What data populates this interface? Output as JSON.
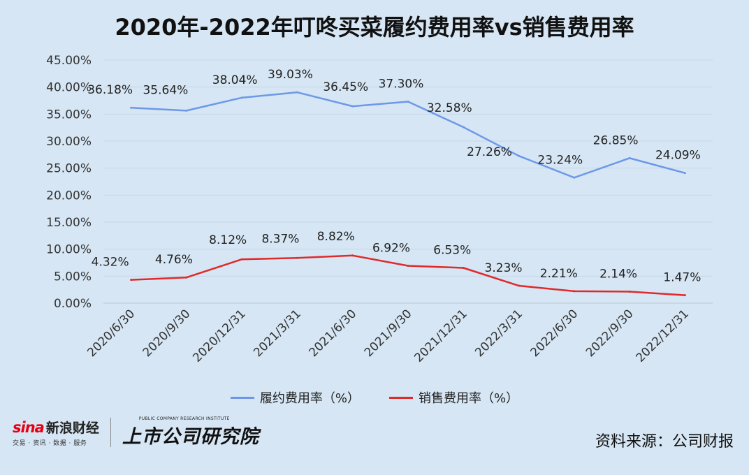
{
  "title": "2020年-2022年叮咚买菜履约费用率vs销售费用率",
  "chart_data": {
    "type": "line",
    "categories": [
      "2020/6/30",
      "2020/9/30",
      "2020/12/31",
      "2021/3/31",
      "2021/6/30",
      "2021/9/30",
      "2021/12/31",
      "2022/3/31",
      "2022/6/30",
      "2022/9/30",
      "2022/12/31"
    ],
    "series": [
      {
        "name": "履约费用率（%）",
        "color": "#6d98e8",
        "values": [
          36.18,
          35.64,
          38.04,
          39.03,
          36.45,
          37.3,
          32.58,
          27.26,
          23.24,
          26.85,
          24.09
        ],
        "labels": [
          "36.18%",
          "35.64%",
          "38.04%",
          "39.03%",
          "36.45%",
          "37.30%",
          "32.58%",
          "27.26%",
          "23.24%",
          "26.85%",
          "24.09%"
        ]
      },
      {
        "name": "销售费用率（%）",
        "color": "#e02a2a",
        "values": [
          4.32,
          4.76,
          8.12,
          8.37,
          8.82,
          6.92,
          6.53,
          3.23,
          2.21,
          2.14,
          1.47
        ],
        "labels": [
          "4.32%",
          "4.76%",
          "8.12%",
          "8.37%",
          "8.82%",
          "6.92%",
          "6.53%",
          "3.23%",
          "2.21%",
          "2.14%",
          "1.47%"
        ]
      }
    ],
    "yticks": [
      "0.00%",
      "5.00%",
      "10.00%",
      "15.00%",
      "20.00%",
      "25.00%",
      "30.00%",
      "35.00%",
      "40.00%",
      "45.00%"
    ],
    "ylim": [
      0,
      45
    ],
    "grid": true,
    "legend_position": "bottom"
  },
  "footer": {
    "sina_logo_text": "sina",
    "sina_cn": "新浪财经",
    "sina_sub": "交易 · 资讯 · 数据 · 服务",
    "institute_sub": "PUBLIC COMPANY RESEARCH INSTITUTE",
    "institute_name": "上市公司研究院",
    "source": "资料来源：公司财报"
  }
}
